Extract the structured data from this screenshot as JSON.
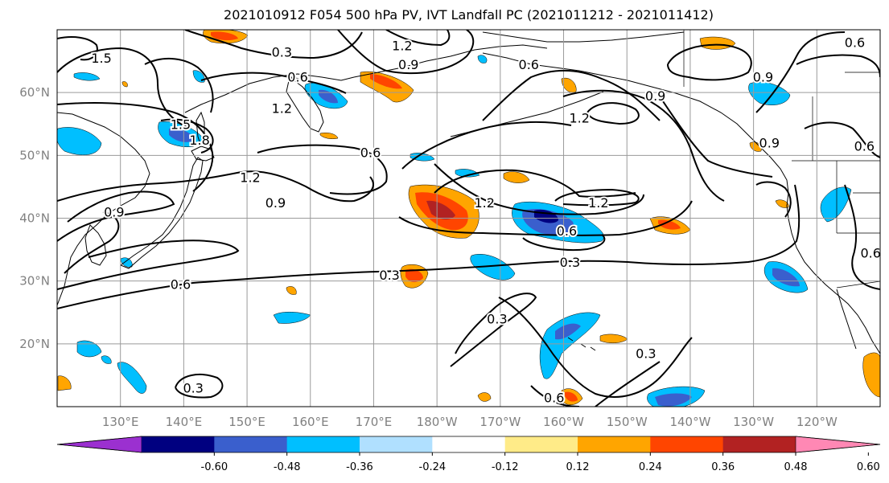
{
  "title": "2021010912 F054 500 hPa PV, IVT Landfall PC (2021011212 - 2021011412)",
  "map": {
    "lon_range": [
      120,
      250
    ],
    "lat_range": [
      10,
      70
    ],
    "lat_ticks": [
      {
        "lat": 20,
        "label": "20°N"
      },
      {
        "lat": 30,
        "label": "30°N"
      },
      {
        "lat": 40,
        "label": "40°N"
      },
      {
        "lat": 50,
        "label": "50°N"
      },
      {
        "lat": 60,
        "label": "60°N"
      }
    ],
    "lon_ticks": [
      {
        "lon": 130,
        "label": "130°E"
      },
      {
        "lon": 140,
        "label": "140°E"
      },
      {
        "lon": 150,
        "label": "150°E"
      },
      {
        "lon": 160,
        "label": "160°E"
      },
      {
        "lon": 170,
        "label": "170°E"
      },
      {
        "lon": 180,
        "label": "180°W"
      },
      {
        "lon": 190,
        "label": "170°W"
      },
      {
        "lon": 200,
        "label": "160°W"
      },
      {
        "lon": 210,
        "label": "150°W"
      },
      {
        "lon": 220,
        "label": "140°W"
      },
      {
        "lon": 230,
        "label": "130°W"
      },
      {
        "lon": 240,
        "label": "120°W"
      }
    ],
    "grid_lats": [
      20,
      30,
      40,
      50,
      60
    ],
    "grid_lons": [
      130,
      140,
      150,
      160,
      170,
      180,
      190,
      200,
      210,
      220,
      230,
      240
    ],
    "contour_labels": [
      {
        "text": "1.5",
        "lon": 127.0,
        "lat": 65.5
      },
      {
        "text": "0.3",
        "lon": 155.5,
        "lat": 66.5
      },
      {
        "text": "1.2",
        "lon": 174.5,
        "lat": 67.5
      },
      {
        "text": "0.9",
        "lon": 175.5,
        "lat": 64.5
      },
      {
        "text": "0.6",
        "lon": 158.0,
        "lat": 62.5
      },
      {
        "text": "1.2",
        "lon": 155.5,
        "lat": 57.5
      },
      {
        "text": "1.5",
        "lon": 139.5,
        "lat": 55.0
      },
      {
        "text": "1.8",
        "lon": 142.5,
        "lat": 52.5
      },
      {
        "text": "0.6",
        "lon": 169.5,
        "lat": 50.5
      },
      {
        "text": "1.2",
        "lon": 150.5,
        "lat": 46.5
      },
      {
        "text": "0.9",
        "lon": 154.5,
        "lat": 42.5
      },
      {
        "text": "0.9",
        "lon": 129.0,
        "lat": 41.0
      },
      {
        "text": "1.2",
        "lon": 187.5,
        "lat": 42.5
      },
      {
        "text": "1.2",
        "lon": 205.5,
        "lat": 42.5
      },
      {
        "text": "0.6",
        "lon": 200.5,
        "lat": 38.0
      },
      {
        "text": "0.3",
        "lon": 201.0,
        "lat": 33.0
      },
      {
        "text": "0.3",
        "lon": 172.5,
        "lat": 31.0
      },
      {
        "text": "0.6",
        "lon": 139.5,
        "lat": 29.5
      },
      {
        "text": "0.3",
        "lon": 189.5,
        "lat": 24.0
      },
      {
        "text": "0.3",
        "lon": 213.0,
        "lat": 18.5
      },
      {
        "text": "0.3",
        "lon": 141.5,
        "lat": 13.0
      },
      {
        "text": "0.6",
        "lon": 198.5,
        "lat": 11.5
      },
      {
        "text": "0.9",
        "lon": 231.5,
        "lat": 62.5
      },
      {
        "text": "0.9",
        "lon": 214.5,
        "lat": 59.5
      },
      {
        "text": "1.2",
        "lon": 202.5,
        "lat": 56.0
      },
      {
        "text": "0.6",
        "lon": 194.5,
        "lat": 64.5
      },
      {
        "text": "0.9",
        "lon": 232.5,
        "lat": 52.0
      },
      {
        "text": "0.6",
        "lon": 247.5,
        "lat": 51.5
      },
      {
        "text": "0.6",
        "lon": 246.0,
        "lat": 68.0
      },
      {
        "text": "0.6",
        "lon": 248.5,
        "lat": 34.5
      }
    ]
  },
  "colorbar": {
    "colors": [
      "#9b30d0",
      "#000080",
      "#3a5fcd",
      "#00bfff",
      "#b0e0ff",
      "#ffffff",
      "#ffeb88",
      "#ffa500",
      "#ff4500",
      "#b22222",
      "#ff88b4"
    ],
    "labels": [
      "-0.60",
      "-0.48",
      "-0.36",
      "-0.24",
      "-0.12",
      "0.12",
      "0.24",
      "0.36",
      "0.48",
      "0.60"
    ]
  }
}
